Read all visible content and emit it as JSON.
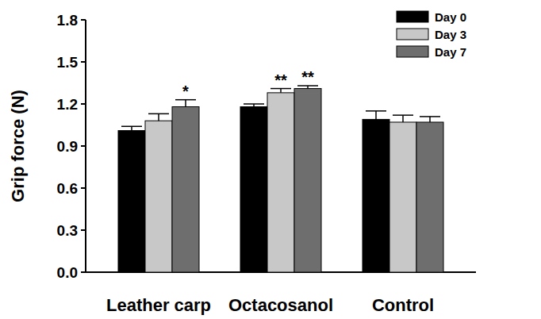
{
  "chart_data": {
    "type": "bar",
    "y_label": "Grip force (N)",
    "categories": [
      "Leather carp",
      "Octacosanol",
      "Control"
    ],
    "series": [
      {
        "name": "Day 0",
        "color": "#000000",
        "values": [
          1.01,
          1.18,
          1.09
        ],
        "errors": [
          0.03,
          0.02,
          0.06
        ],
        "annotations": [
          null,
          null,
          null
        ]
      },
      {
        "name": "Day 3",
        "color": "#c8c8c8",
        "values": [
          1.08,
          1.28,
          1.07
        ],
        "errors": [
          0.05,
          0.03,
          0.05
        ],
        "annotations": [
          null,
          "**",
          null
        ]
      },
      {
        "name": "Day 7",
        "color": "#6e6e6e",
        "values": [
          1.18,
          1.31,
          1.07
        ],
        "errors": [
          0.05,
          0.02,
          0.04
        ],
        "annotations": [
          "*",
          "**",
          null
        ]
      }
    ],
    "ylim": [
      0,
      1.8
    ],
    "yticks": [
      {
        "value": 0,
        "label": "0.0"
      },
      0.3,
      0.6,
      0.9,
      1.2,
      1.5,
      1.8
    ],
    "legend": "upper right",
    "grid": false
  }
}
